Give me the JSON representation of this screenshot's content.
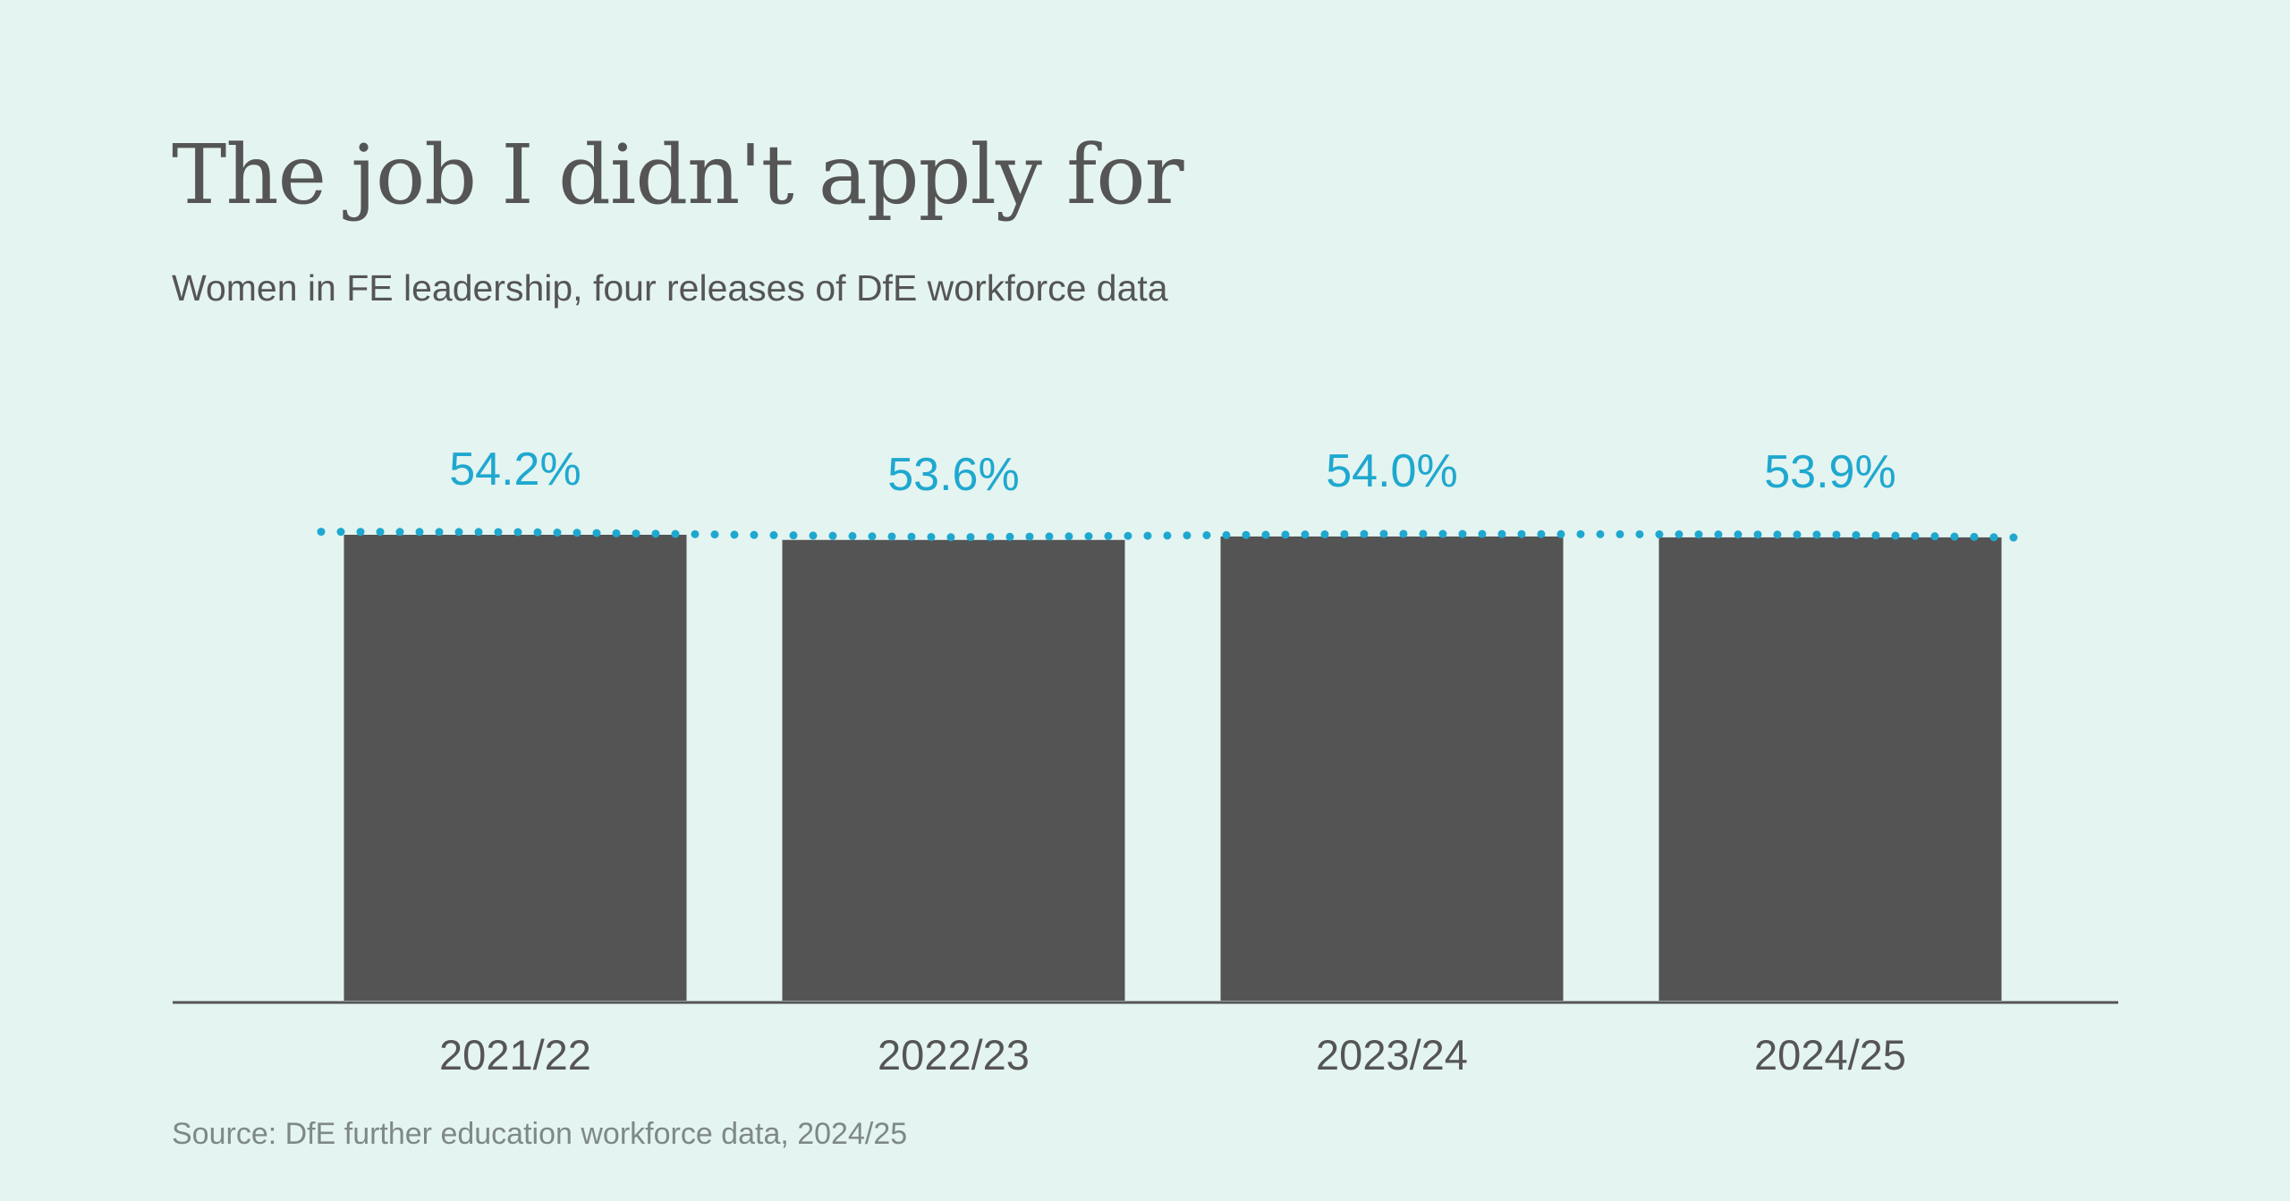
{
  "chart_data": {
    "type": "bar",
    "title": "The job I didn't apply for",
    "subtitle": "Women in FE leadership, four releases of DfE workforce data",
    "source": "Source: DfE further education workforce data, 2024/25",
    "categories": [
      "2021/22",
      "2022/23",
      "2023/24",
      "2024/25"
    ],
    "values": [
      54.2,
      53.6,
      54.0,
      53.9
    ],
    "value_labels": [
      "54.2%",
      "53.6%",
      "54.0%",
      "53.9%"
    ],
    "xlabel": "",
    "ylabel": "",
    "ylim": [
      0,
      54.2
    ],
    "grid": false,
    "trend_line": "dotted line across the bar tops",
    "colors": {
      "background": "#e4f4f1",
      "bar": "#545454",
      "accent": "#1fa8cf",
      "text": "#555555",
      "source_text": "#7f8888",
      "axis": "#555555"
    }
  }
}
